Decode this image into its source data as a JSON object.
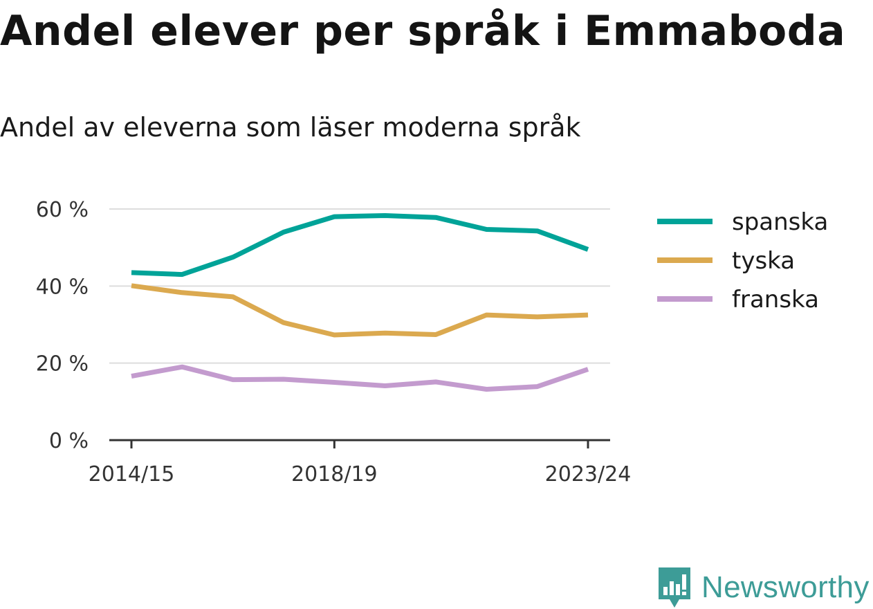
{
  "title": "Andel elever per språk i Emmaboda",
  "subtitle": "Andel av eleverna som läser moderna språk",
  "brand": "Newsworthy",
  "chart_data": {
    "type": "line",
    "x": [
      "2014/15",
      "2015/16",
      "2016/17",
      "2017/18",
      "2018/19",
      "2019/20",
      "2020/21",
      "2021/22",
      "2022/23",
      "2023/24"
    ],
    "x_tick_labels": [
      "2014/15",
      "2018/19",
      "2023/24"
    ],
    "y_tick_labels": [
      "0 %",
      "20 %",
      "40 %",
      "60 %"
    ],
    "y_ticks": [
      0,
      20,
      40,
      60
    ],
    "ylim": [
      0,
      60
    ],
    "grid": true,
    "legend_position": "right",
    "series": [
      {
        "name": "spanska",
        "color": "#00a398",
        "values": [
          43.5,
          43.0,
          47.5,
          54.0,
          58.0,
          58.3,
          57.8,
          54.7,
          54.3,
          49.5
        ]
      },
      {
        "name": "tyska",
        "color": "#dba94f",
        "values": [
          40.1,
          38.3,
          37.2,
          30.5,
          27.3,
          27.8,
          27.4,
          32.5,
          32.0,
          32.5
        ]
      },
      {
        "name": "franska",
        "color": "#c39bce",
        "values": [
          16.6,
          19.0,
          15.7,
          15.8,
          15.0,
          14.1,
          15.1,
          13.2,
          13.9,
          18.4
        ]
      }
    ]
  },
  "colors": {
    "grid": "#dddddd",
    "axis": "#333333",
    "brand": "#3d9c97"
  },
  "icons": {
    "brand_logo": "bar-chart-speech-bubble-icon"
  }
}
